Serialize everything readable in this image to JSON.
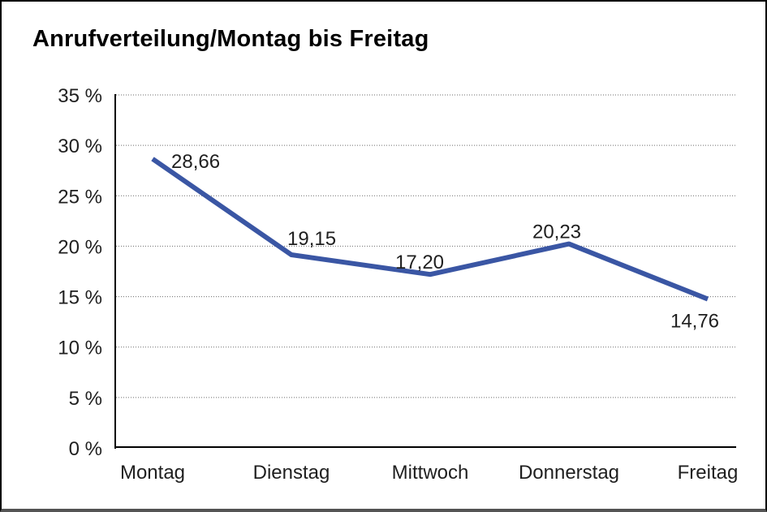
{
  "title": "Anrufverteilung/Montag bis Freitag",
  "chart_data": {
    "type": "line",
    "title": "Anrufverteilung/Montag bis Freitag",
    "categories": [
      "Montag",
      "Dienstag",
      "Mittwoch",
      "Donnerstag",
      "Freitag"
    ],
    "values": [
      28.66,
      19.15,
      17.2,
      20.23,
      14.76
    ],
    "value_labels": [
      "28,66",
      "19,15",
      "17,20",
      "20,23",
      "14,76"
    ],
    "xlabel": "",
    "ylabel": "",
    "ylim": [
      0,
      35
    ],
    "ytick_step": 5,
    "ytick_labels": [
      "0 %",
      "5 %",
      "10 %",
      "15 %",
      "20 %",
      "25 %",
      "30 %",
      "35 %"
    ],
    "grid": "horizontal-dotted",
    "legend_position": "none",
    "line_color": "#3A56A4"
  },
  "colors": {
    "line": "#3A56A4",
    "axis": "#000000",
    "grid": "#6e6e6e",
    "text": "#1f1f1f",
    "background": "#ffffff",
    "border": "#000000",
    "border_bottom": "#545454"
  }
}
